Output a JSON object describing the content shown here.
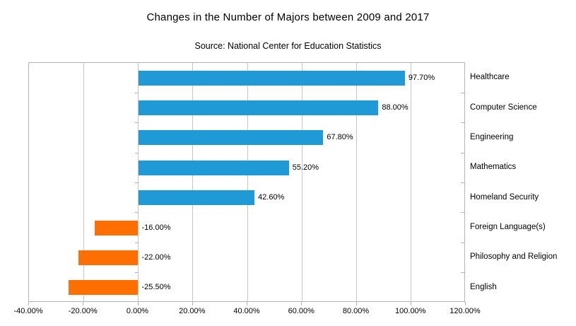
{
  "title": "Changes in the Number of Majors between 2009 and 2017",
  "subtitle": "Source: National Center for Education Statistics",
  "chart_data": {
    "type": "bar",
    "orientation": "horizontal",
    "title": "Changes in the Number of Majors between 2009 and 2017",
    "subtitle": "Source: National Center for Education Statistics",
    "categories": [
      "Healthcare",
      "Computer Science",
      "Engineering",
      "Mathematics",
      "Homeland Security",
      "Foreign Language(s)",
      "Philosophy and Religion",
      "English"
    ],
    "values": [
      97.7,
      88.0,
      67.8,
      55.2,
      42.6,
      -16.0,
      -22.0,
      -25.5
    ],
    "value_labels": [
      "97.70%",
      "88.00%",
      "67.80%",
      "55.20%",
      "42.60%",
      "-16.00%",
      "-22.00%",
      "-25.50%"
    ],
    "xlim": [
      -40,
      120
    ],
    "x_tick_values": [
      -40,
      -20,
      0,
      20,
      40,
      60,
      80,
      100,
      120
    ],
    "x_tick_labels": [
      "-40.00%",
      "-20.00%",
      "0.00%",
      "20.00%",
      "40.00%",
      "60.00%",
      "80.00%",
      "100.00%",
      "120.00%"
    ],
    "grid": "vertical gridlines at 20% intervals, category labels on right side",
    "legend": "none",
    "colors": {
      "positive_bar": "#1f9ad7",
      "negative_bar": "#ff6e00",
      "gridline": "#c6c6c6",
      "plot_border": "#b3b3b3",
      "text": "#000000"
    }
  }
}
